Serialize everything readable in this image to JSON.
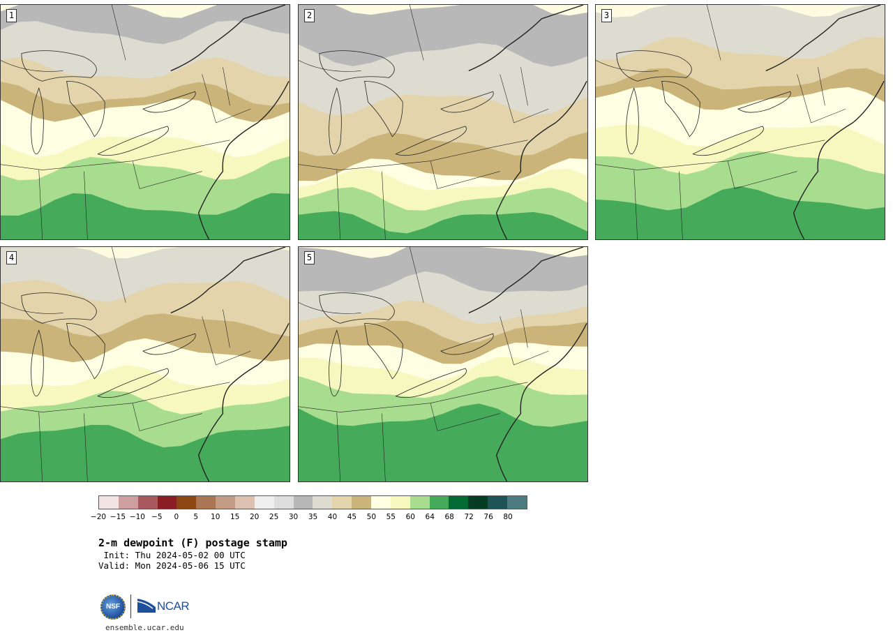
{
  "panels": [
    {
      "num": "1",
      "variant": 1
    },
    {
      "num": "2",
      "variant": 2
    },
    {
      "num": "3",
      "variant": 3
    },
    {
      "num": "4",
      "variant": 4
    },
    {
      "num": "5",
      "variant": 5
    }
  ],
  "colorbar": {
    "colors": [
      "#f2e4e4",
      "#cf9ea1",
      "#a85a5e",
      "#8c1d24",
      "#8c4611",
      "#aa7654",
      "#c39c86",
      "#dcc0b0",
      "#eeeeee",
      "#dedede",
      "#b8b8b8",
      "#dedcd0",
      "#e3d4ab",
      "#cbb479",
      "#fefee3",
      "#f6f8bf",
      "#a8dd8f",
      "#46aa5b",
      "#016b33",
      "#053d24",
      "#1e5457",
      "#4d7c80"
    ],
    "tick_labels": [
      "−20",
      "−15",
      "−10",
      "−5",
      "0",
      "5",
      "10",
      "15",
      "20",
      "25",
      "30",
      "35",
      "40",
      "45",
      "50",
      "55",
      "60",
      "64",
      "68",
      "72",
      "76",
      "80"
    ]
  },
  "title": "2-m dewpoint (F) postage stamp",
  "init_line": " Init: Thu 2024-05-02 00 UTC",
  "valid_line": "Valid: Mon 2024-05-06 15 UTC",
  "logos": {
    "nsf": "NSF",
    "ncar": "NCAR"
  },
  "url": "ensemble.ucar.edu"
}
